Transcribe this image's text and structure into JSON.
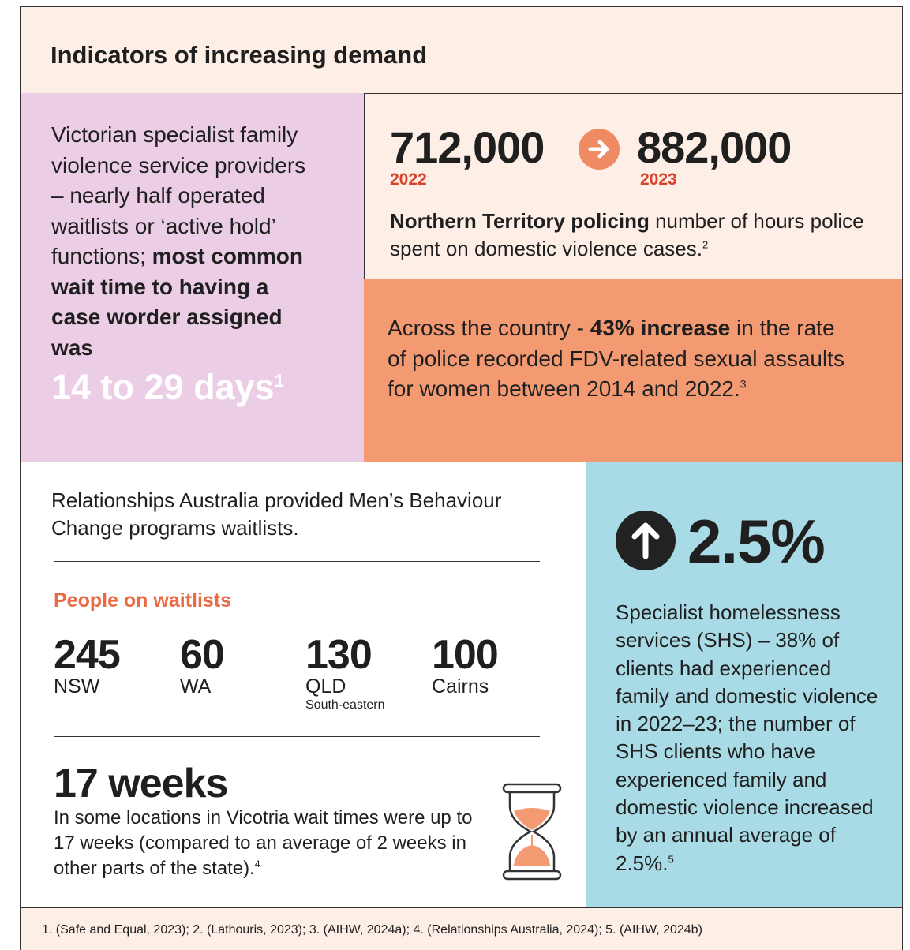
{
  "header": {
    "title": "Indicators of increasing demand"
  },
  "waitlist_panel": {
    "text": "Victorian specialist family violence service providers – nearly half operated waitlists or ‘active hold’ functions; ",
    "bold": "most common wait time to having a case worder assigned was",
    "highlight": "14 to 29 days",
    "ref": "1"
  },
  "policing_panel": {
    "from": {
      "value": "712,000",
      "year": "2022"
    },
    "to": {
      "value": "882,000",
      "year": "2023"
    },
    "bold": "Northern Territory policing",
    "text": " number of hours police spent on domestic violence cases.",
    "ref": "2"
  },
  "assault_panel": {
    "text_before": "Across the country - ",
    "bold": "43% increase",
    "text_after": " in the rate of police recorded FDV-related sexual assaults for women between 2014 and 2022.",
    "ref": "3"
  },
  "mbc_panel": {
    "intro": "Relationships Australia provided Men’s Behaviour Change programs waitlists.",
    "heading": "People on waitlists",
    "items": [
      {
        "value": "245",
        "label": "NSW"
      },
      {
        "value": "60",
        "label": "WA"
      },
      {
        "value": "130",
        "label": "QLD",
        "sublabel": "South-eastern"
      },
      {
        "value": "100",
        "label": "Cairns"
      }
    ],
    "weeks_heading": "17 weeks",
    "weeks_text": "In some locations in Vicotria wait times were up to 17 weeks (compared to an average of 2 weeks in other parts of the state).",
    "ref": "4"
  },
  "shs_panel": {
    "stat": "2.5%",
    "text": "Specialist homelessness services (SHS) – 38% of clients had experienced family and domestic violence in 2022–23; the number of SHS clients who have experienced family and domestic violence increased by an annual average of 2.5%.",
    "ref": "5"
  },
  "footer": {
    "text": "1. (Safe and Equal, 2023); 2. (Lathouris, 2023); 3. (AIHW, 2024a); 4. (Relationships Australia, 2024); 5. (AIHW, 2024b)"
  }
}
